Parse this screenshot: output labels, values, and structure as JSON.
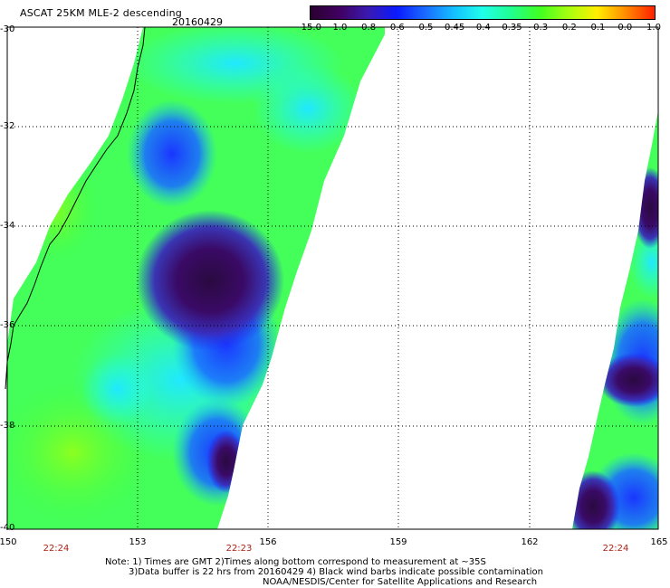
{
  "header": {
    "title": "ASCAT 25KM MLE-2 descending",
    "date": "20160429"
  },
  "colorbar": {
    "labels": [
      "-15.0",
      "-1.0",
      "-0.8",
      "-0.6",
      "-0.5",
      "-0.45",
      "-0.4",
      "-0.35",
      "-0.3",
      "-0.2",
      "-0.1",
      "0.0",
      "1.0"
    ],
    "colors": [
      "#2a0030",
      "#400060",
      "#3a1ab0",
      "#0a1aff",
      "#1a6aff",
      "#14c0ff",
      "#20ffea",
      "#20ff90",
      "#40ff20",
      "#a8ff10",
      "#ffee00",
      "#ff8a00",
      "#ff2000"
    ]
  },
  "axes": {
    "lat_labels": [
      "-30",
      "-32",
      "-34",
      "-36",
      "-38",
      "-40"
    ],
    "lon_labels": [
      "150",
      "153",
      "156",
      "159",
      "162",
      "165"
    ],
    "time_labels": [
      "22:24",
      "22:23",
      "22:24"
    ]
  },
  "notes": {
    "line1": "Note: 1) Times are GMT 2)Times along bottom correspond to measurement at ~35S",
    "line2": "3)Data buffer is 22 hrs from 20160429 4) Black wind barbs indicate possible contamination",
    "line3": "NOAA/NESDIS/Center for Satellite Applications and Research"
  }
}
